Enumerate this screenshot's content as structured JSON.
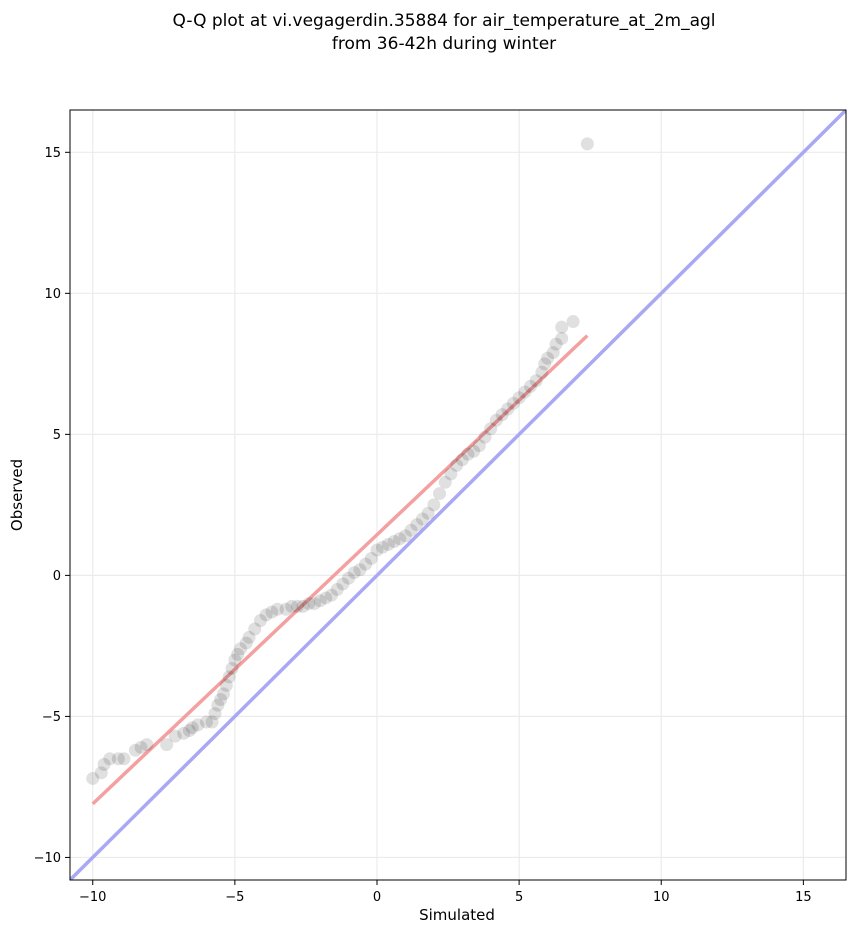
{
  "chart_data": {
    "type": "scatter",
    "title": [
      "Q-Q plot at vi.vegagerdin.35884 for air_temperature_at_2m_agl",
      "from 36-42h during winter"
    ],
    "xlabel": "Simulated",
    "ylabel": "Observed",
    "xlim": [
      -10.8,
      16.5
    ],
    "ylim": [
      -10.8,
      16.5
    ],
    "xticks": [
      -10,
      -5,
      0,
      5,
      10,
      15
    ],
    "yticks": [
      -10,
      -5,
      0,
      5,
      10,
      15
    ],
    "xtick_labels": [
      "−10",
      "−5",
      "0",
      "5",
      "10",
      "15"
    ],
    "ytick_labels": [
      "−10",
      "−5",
      "0",
      "5",
      "10",
      "15"
    ],
    "grid": true,
    "colors": {
      "points": "#000000",
      "fit_line": "#f4a0a0",
      "identity_line": "#a8a8f4",
      "grid": "#ebebeb"
    },
    "reference_lines": [
      {
        "kind": "fit",
        "x": [
          -10.0,
          7.4
        ],
        "y": [
          -8.1,
          8.5
        ]
      },
      {
        "kind": "identity",
        "x": [
          -10.8,
          16.5
        ],
        "y": [
          -10.8,
          16.5
        ]
      }
    ],
    "points": [
      [
        -10.0,
        -7.2
      ],
      [
        -9.7,
        -7.0
      ],
      [
        -9.6,
        -6.7
      ],
      [
        -9.4,
        -6.5
      ],
      [
        -9.1,
        -6.5
      ],
      [
        -8.9,
        -6.5
      ],
      [
        -8.5,
        -6.2
      ],
      [
        -8.3,
        -6.1
      ],
      [
        -8.1,
        -6.0
      ],
      [
        -7.4,
        -6.0
      ],
      [
        -7.1,
        -5.7
      ],
      [
        -6.8,
        -5.6
      ],
      [
        -6.6,
        -5.5
      ],
      [
        -6.5,
        -5.4
      ],
      [
        -6.3,
        -5.3
      ],
      [
        -6.0,
        -5.2
      ],
      [
        -5.8,
        -5.2
      ],
      [
        -5.7,
        -4.9
      ],
      [
        -5.6,
        -4.6
      ],
      [
        -5.5,
        -4.4
      ],
      [
        -5.4,
        -4.2
      ],
      [
        -5.3,
        -3.9
      ],
      [
        -5.2,
        -3.6
      ],
      [
        -5.1,
        -3.3
      ],
      [
        -5.0,
        -3.0
      ],
      [
        -4.9,
        -2.8
      ],
      [
        -4.8,
        -2.6
      ],
      [
        -4.6,
        -2.4
      ],
      [
        -4.5,
        -2.2
      ],
      [
        -4.3,
        -1.9
      ],
      [
        -4.1,
        -1.6
      ],
      [
        -3.9,
        -1.4
      ],
      [
        -3.7,
        -1.3
      ],
      [
        -3.5,
        -1.2
      ],
      [
        -3.2,
        -1.2
      ],
      [
        -3.0,
        -1.1
      ],
      [
        -2.8,
        -1.1
      ],
      [
        -2.6,
        -1.1
      ],
      [
        -2.4,
        -1.0
      ],
      [
        -2.2,
        -1.0
      ],
      [
        -2.0,
        -0.9
      ],
      [
        -1.8,
        -0.8
      ],
      [
        -1.6,
        -0.7
      ],
      [
        -1.4,
        -0.5
      ],
      [
        -1.2,
        -0.3
      ],
      [
        -1.0,
        -0.1
      ],
      [
        -0.8,
        0.1
      ],
      [
        -0.6,
        0.2
      ],
      [
        -0.4,
        0.4
      ],
      [
        -0.2,
        0.6
      ],
      [
        0.0,
        0.9
      ],
      [
        0.2,
        1.0
      ],
      [
        0.4,
        1.1
      ],
      [
        0.6,
        1.2
      ],
      [
        0.8,
        1.3
      ],
      [
        1.0,
        1.4
      ],
      [
        1.2,
        1.6
      ],
      [
        1.4,
        1.8
      ],
      [
        1.6,
        2.0
      ],
      [
        1.8,
        2.2
      ],
      [
        2.0,
        2.5
      ],
      [
        2.2,
        2.9
      ],
      [
        2.4,
        3.3
      ],
      [
        2.6,
        3.6
      ],
      [
        2.8,
        3.9
      ],
      [
        3.0,
        4.1
      ],
      [
        3.2,
        4.3
      ],
      [
        3.4,
        4.4
      ],
      [
        3.6,
        4.6
      ],
      [
        3.8,
        4.9
      ],
      [
        4.0,
        5.2
      ],
      [
        4.2,
        5.5
      ],
      [
        4.4,
        5.7
      ],
      [
        4.6,
        5.9
      ],
      [
        4.8,
        6.1
      ],
      [
        5.0,
        6.3
      ],
      [
        5.2,
        6.5
      ],
      [
        5.4,
        6.7
      ],
      [
        5.6,
        6.9
      ],
      [
        5.8,
        7.2
      ],
      [
        5.9,
        7.5
      ],
      [
        6.0,
        7.7
      ],
      [
        6.2,
        7.9
      ],
      [
        6.3,
        8.2
      ],
      [
        6.5,
        8.4
      ],
      [
        6.5,
        8.8
      ],
      [
        6.9,
        9.0
      ],
      [
        7.4,
        15.3
      ]
    ]
  }
}
